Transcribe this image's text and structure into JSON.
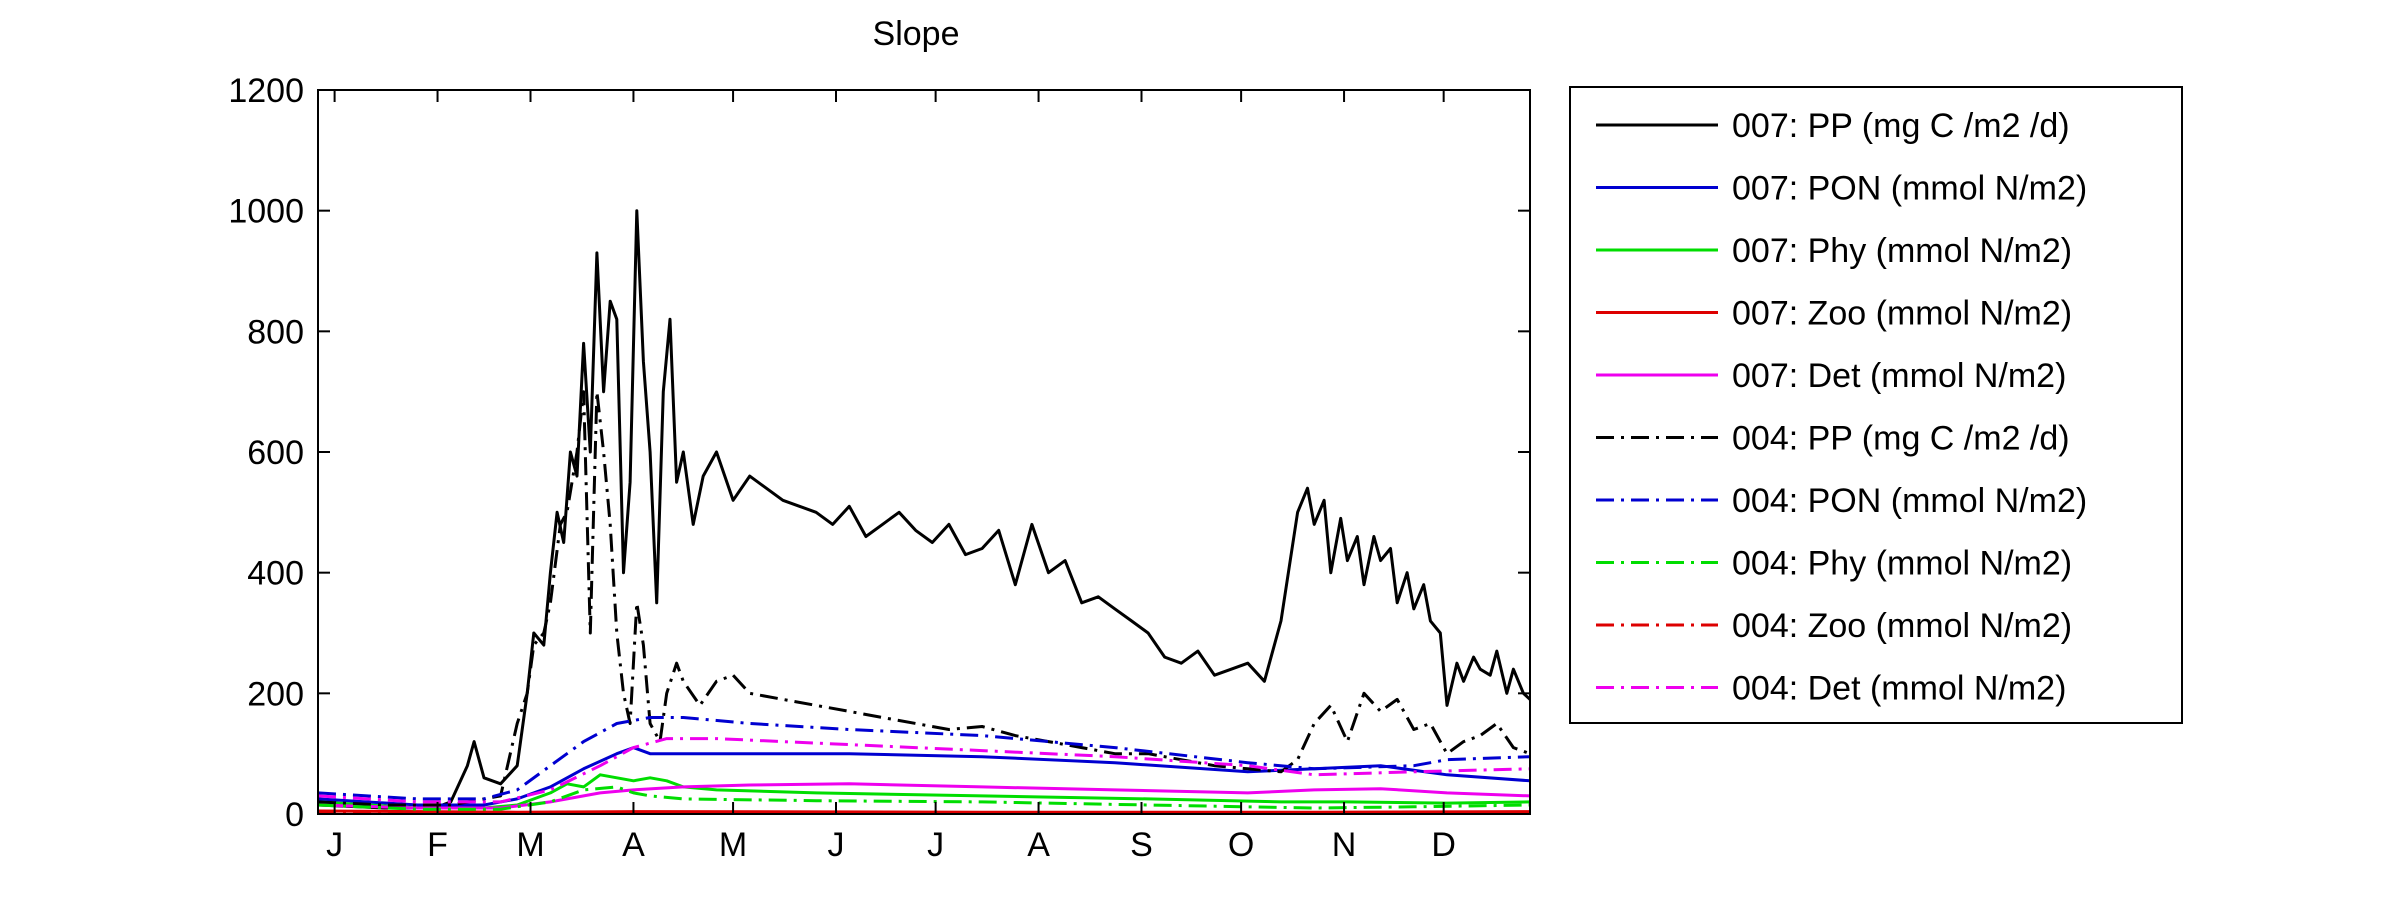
{
  "chart_data": {
    "type": "line",
    "title": "Slope",
    "xlabel": "",
    "ylabel": "",
    "ylim": [
      0,
      1200
    ],
    "xlim": [
      0,
      365
    ],
    "grid": false,
    "legend_placement": "outside-right",
    "yticks": [
      0,
      200,
      400,
      600,
      800,
      1000,
      1200
    ],
    "xtick_labels": [
      "J",
      "F",
      "M",
      "A",
      "M",
      "J",
      "J",
      "A",
      "S",
      "O",
      "N",
      "D"
    ],
    "xtick_days": [
      5,
      36,
      64,
      95,
      125,
      156,
      186,
      217,
      248,
      278,
      309,
      339
    ],
    "series": [
      {
        "name": "007: PP (mg C /m2 /d)",
        "color": "#000000",
        "dash": "solid",
        "x": [
          0,
          20,
          35,
          40,
          45,
          47,
          50,
          55,
          60,
          63,
          65,
          68,
          70,
          72,
          74,
          76,
          78,
          80,
          82,
          84,
          86,
          88,
          90,
          92,
          94,
          96,
          98,
          100,
          102,
          104,
          106,
          108,
          110,
          113,
          116,
          120,
          125,
          130,
          135,
          140,
          145,
          150,
          155,
          160,
          165,
          170,
          175,
          180,
          185,
          190,
          195,
          200,
          205,
          210,
          215,
          220,
          225,
          230,
          235,
          240,
          245,
          250,
          255,
          260,
          265,
          270,
          275,
          280,
          285,
          290,
          295,
          298,
          300,
          303,
          305,
          308,
          310,
          313,
          315,
          318,
          320,
          323,
          325,
          328,
          330,
          333,
          335,
          338,
          340,
          343,
          345,
          348,
          350,
          353,
          355,
          358,
          360,
          363,
          365
        ],
        "y": [
          15,
          10,
          10,
          20,
          80,
          120,
          60,
          50,
          80,
          200,
          300,
          280,
          400,
          500,
          450,
          600,
          560,
          780,
          600,
          930,
          700,
          850,
          820,
          400,
          550,
          1000,
          750,
          600,
          350,
          700,
          820,
          550,
          600,
          480,
          560,
          600,
          520,
          560,
          540,
          520,
          510,
          500,
          480,
          510,
          460,
          480,
          500,
          470,
          450,
          480,
          430,
          440,
          470,
          380,
          480,
          400,
          420,
          350,
          360,
          340,
          320,
          300,
          260,
          250,
          270,
          230,
          240,
          250,
          220,
          320,
          500,
          540,
          480,
          520,
          400,
          490,
          420,
          460,
          380,
          460,
          420,
          440,
          350,
          400,
          340,
          380,
          320,
          300,
          180,
          250,
          220,
          260,
          240,
          230,
          270,
          200,
          240,
          200,
          190
        ]
      },
      {
        "name": "007: PON (mmol N/m2)",
        "color": "#0000d0",
        "dash": "solid",
        "x": [
          0,
          30,
          50,
          60,
          70,
          80,
          90,
          95,
          100,
          110,
          130,
          160,
          200,
          240,
          280,
          300,
          320,
          340,
          365
        ],
        "y": [
          25,
          15,
          15,
          25,
          45,
          75,
          100,
          110,
          100,
          100,
          100,
          100,
          95,
          85,
          70,
          75,
          80,
          65,
          55
        ]
      },
      {
        "name": "007: Phy (mmol N/m2)",
        "color": "#00dd00",
        "dash": "solid",
        "x": [
          0,
          30,
          50,
          60,
          70,
          75,
          80,
          85,
          90,
          95,
          100,
          105,
          110,
          120,
          150,
          200,
          250,
          290,
          310,
          340,
          365
        ],
        "y": [
          20,
          10,
          10,
          15,
          35,
          50,
          45,
          65,
          60,
          55,
          60,
          55,
          45,
          40,
          35,
          30,
          25,
          20,
          20,
          18,
          20
        ]
      },
      {
        "name": "007: Zoo (mmol N/m2)",
        "color": "#dd0000",
        "dash": "solid",
        "x": [
          0,
          60,
          100,
          200,
          300,
          365
        ],
        "y": [
          5,
          3,
          4,
          3,
          3,
          4
        ]
      },
      {
        "name": "007: Det (mmol N/m2)",
        "color": "#ee00ee",
        "dash": "solid",
        "x": [
          0,
          30,
          55,
          70,
          85,
          95,
          110,
          130,
          160,
          200,
          240,
          280,
          300,
          320,
          340,
          365
        ],
        "y": [
          15,
          10,
          10,
          20,
          35,
          40,
          45,
          48,
          50,
          45,
          40,
          35,
          40,
          42,
          35,
          30
        ]
      },
      {
        "name": "004: PP (mg C /m2 /d)",
        "color": "#000000",
        "dash": "dashdot",
        "x": [
          0,
          20,
          40,
          55,
          60,
          63,
          65,
          68,
          70,
          73,
          75,
          78,
          80,
          82,
          84,
          86,
          88,
          90,
          92,
          94,
          96,
          98,
          100,
          103,
          105,
          108,
          110,
          115,
          120,
          125,
          130,
          140,
          150,
          160,
          170,
          180,
          190,
          200,
          210,
          220,
          230,
          240,
          250,
          260,
          270,
          280,
          290,
          295,
          300,
          305,
          310,
          315,
          320,
          325,
          330,
          335,
          340,
          345,
          350,
          355,
          360,
          365
        ],
        "y": [
          20,
          15,
          15,
          30,
          150,
          200,
          280,
          300,
          350,
          480,
          500,
          600,
          700,
          300,
          700,
          600,
          480,
          300,
          200,
          150,
          350,
          280,
          150,
          120,
          200,
          250,
          220,
          180,
          220,
          230,
          200,
          190,
          180,
          170,
          160,
          150,
          140,
          145,
          130,
          120,
          110,
          100,
          100,
          90,
          80,
          75,
          70,
          90,
          150,
          180,
          120,
          200,
          170,
          190,
          140,
          150,
          100,
          120,
          130,
          150,
          110,
          100
        ]
      },
      {
        "name": "004: PON (mmol N/m2)",
        "color": "#0000d0",
        "dash": "dashdot",
        "x": [
          0,
          30,
          50,
          60,
          70,
          80,
          90,
          100,
          110,
          130,
          160,
          200,
          240,
          280,
          300,
          330,
          340,
          365
        ],
        "y": [
          35,
          25,
          25,
          40,
          80,
          120,
          150,
          160,
          160,
          150,
          140,
          130,
          110,
          85,
          75,
          80,
          90,
          95
        ]
      },
      {
        "name": "004: Phy (mmol N/m2)",
        "color": "#00dd00",
        "dash": "dashdot",
        "x": [
          0,
          30,
          55,
          70,
          80,
          90,
          95,
          100,
          110,
          150,
          200,
          250,
          300,
          330,
          365
        ],
        "y": [
          15,
          8,
          8,
          20,
          40,
          45,
          35,
          30,
          25,
          22,
          20,
          15,
          10,
          12,
          15
        ]
      },
      {
        "name": "004: Zoo (mmol N/m2)",
        "color": "#dd0000",
        "dash": "dashdot",
        "x": [
          0,
          60,
          100,
          200,
          300,
          365
        ],
        "y": [
          3,
          2,
          2,
          2,
          2,
          2
        ]
      },
      {
        "name": "004: Det (mmol N/m2)",
        "color": "#ee00ee",
        "dash": "dashdot",
        "x": [
          0,
          30,
          55,
          70,
          85,
          95,
          105,
          120,
          160,
          200,
          240,
          280,
          300,
          330,
          365
        ],
        "y": [
          30,
          20,
          20,
          40,
          80,
          110,
          125,
          125,
          115,
          105,
          95,
          80,
          65,
          70,
          75
        ]
      }
    ]
  }
}
